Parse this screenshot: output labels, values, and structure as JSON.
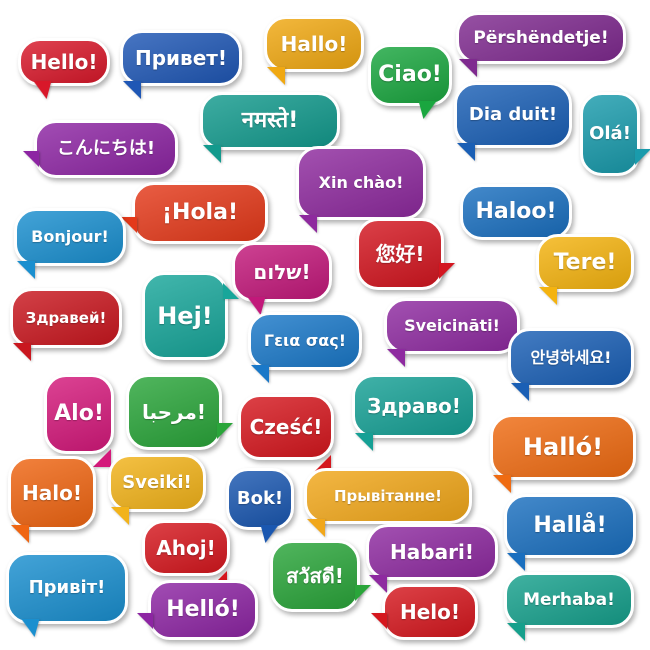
{
  "bubbles": [
    {
      "id": "hello-en",
      "text": "Hello!",
      "color": "#d8182a"
    },
    {
      "id": "privet-ru",
      "text": "Привет!",
      "color": "#1f57b5"
    },
    {
      "id": "hallo-de",
      "text": "Hallo!",
      "color": "#f0a812"
    },
    {
      "id": "pershendetje-sq",
      "text": "Përshëndetje!",
      "color": "#7f2a8f"
    },
    {
      "id": "ciao-it",
      "text": "Ciao!",
      "color": "#1aa63f"
    },
    {
      "id": "namaste-hi",
      "text": "नमस्ते!",
      "color": "#139a8d"
    },
    {
      "id": "dia-duit-ga",
      "text": "Dia duit!",
      "color": "#1a5fb5"
    },
    {
      "id": "ola-pt",
      "text": "Olá!",
      "color": "#1a9bac"
    },
    {
      "id": "konnichiwa-ja",
      "text": "こんにちは!",
      "color": "#8d25a3"
    },
    {
      "id": "xin-chao-vi",
      "text": "Xin chào!",
      "color": "#8e2a9e"
    },
    {
      "id": "hola-es",
      "text": "¡Hola!",
      "color": "#e4391a"
    },
    {
      "id": "bonjour-fr",
      "text": "Bonjour!",
      "color": "#1a8fcf"
    },
    {
      "id": "haloo-et",
      "text": "Haloo!",
      "color": "#1a6fbf"
    },
    {
      "id": "shalom-he",
      "text": "שלום!",
      "color": "#c2187a"
    },
    {
      "id": "ninhao-zh",
      "text": "您好!",
      "color": "#d31620"
    },
    {
      "id": "tere-et",
      "text": "Tere!",
      "color": "#f4b30f"
    },
    {
      "id": "zdravei-bg",
      "text": "Здравей!",
      "color": "#c9171f"
    },
    {
      "id": "hej-sv",
      "text": "Hej!",
      "color": "#18a69a"
    },
    {
      "id": "geia-sas-el",
      "text": "Γεια σας!",
      "color": "#1a78c8"
    },
    {
      "id": "sveicinati-lv",
      "text": "Sveicināti!",
      "color": "#8e2aa0"
    },
    {
      "id": "annyeong-ko",
      "text": "안녕하세요!",
      "color": "#1a5fb5"
    },
    {
      "id": "alo-ro",
      "text": "Alo!",
      "color": "#d4197b"
    },
    {
      "id": "marhaba-ar",
      "text": "مرحبا!",
      "color": "#2aa53a"
    },
    {
      "id": "czesc-pl",
      "text": "Cześć!",
      "color": "#d5171e"
    },
    {
      "id": "zdravo-sr",
      "text": "Здраво!",
      "color": "#16a095"
    },
    {
      "id": "hallo-is",
      "text": "Halló!",
      "color": "#ef6b12"
    },
    {
      "id": "halo-id",
      "text": "Halo!",
      "color": "#ef6512"
    },
    {
      "id": "sveiki-lt",
      "text": "Sveiki!",
      "color": "#f2b31a"
    },
    {
      "id": "bok-hr",
      "text": "Bok!",
      "color": "#1a57b0"
    },
    {
      "id": "pryvitannie-be",
      "text": "Прывітанне!",
      "color": "#f1a71a"
    },
    {
      "id": "halla-no",
      "text": "Hallå!",
      "color": "#1a6fbf"
    },
    {
      "id": "ahoj-cs",
      "text": "Ahoj!",
      "color": "#d5171e"
    },
    {
      "id": "sawasdee-th",
      "text": "สวัสดี!",
      "color": "#2aa53a"
    },
    {
      "id": "habari-sw",
      "text": "Habari!",
      "color": "#8e2aa0"
    },
    {
      "id": "pryvit-uk",
      "text": "Привіт!",
      "color": "#1a8fcf"
    },
    {
      "id": "hello-hu",
      "text": "Helló!",
      "color": "#8d25a3"
    },
    {
      "id": "helo-cy",
      "text": "Helo!",
      "color": "#d5171e"
    },
    {
      "id": "merhaba-tr",
      "text": "Merhaba!",
      "color": "#16a08c"
    }
  ]
}
